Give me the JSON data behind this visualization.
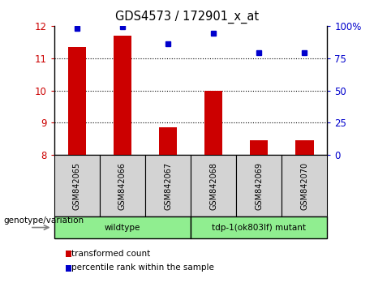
{
  "title": "GDS4573 / 172901_x_at",
  "samples": [
    "GSM842065",
    "GSM842066",
    "GSM842067",
    "GSM842068",
    "GSM842069",
    "GSM842070"
  ],
  "bar_values": [
    11.35,
    11.7,
    8.85,
    10.0,
    8.45,
    8.45
  ],
  "percentile_values": [
    98,
    99,
    86,
    94,
    79,
    79
  ],
  "bar_color": "#cc0000",
  "dot_color": "#0000cc",
  "ylim_left": [
    8,
    12
  ],
  "ylim_right": [
    0,
    100
  ],
  "yticks_left": [
    8,
    9,
    10,
    11,
    12
  ],
  "yticks_right": [
    0,
    25,
    50,
    75,
    100
  ],
  "ytick_labels_right": [
    "0",
    "25",
    "50",
    "75",
    "100%"
  ],
  "xlabel_genotype": "genotype/variation",
  "legend_bar_label": "transformed count",
  "legend_dot_label": "percentile rank within the sample",
  "bg_color_sample_box": "#d3d3d3",
  "bg_color_geno": "#90ee90",
  "tick_color_left": "#cc0000",
  "tick_color_right": "#0000cc",
  "bar_width": 0.4,
  "groups": [
    {
      "label": "wildtype",
      "start": 0,
      "end": 3
    },
    {
      "label": "tdp-1(ok803lf) mutant",
      "start": 3,
      "end": 6
    }
  ]
}
